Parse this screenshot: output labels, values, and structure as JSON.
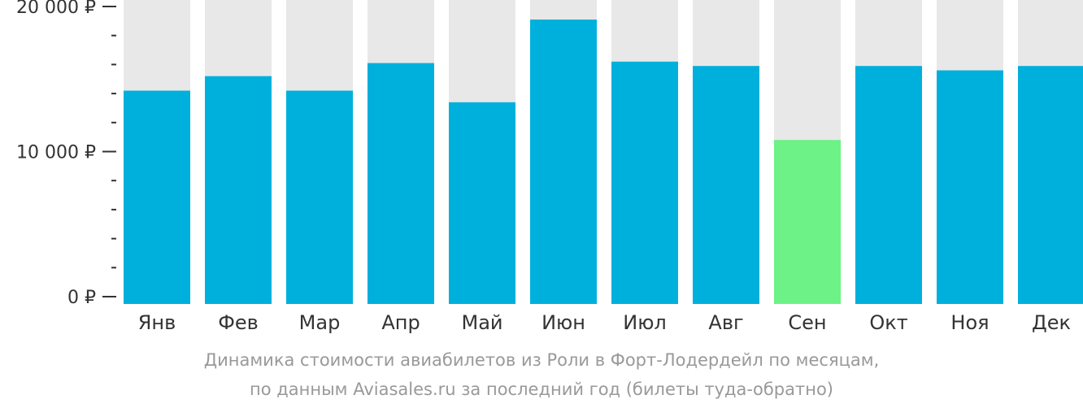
{
  "chart_data": {
    "type": "bar",
    "categories": [
      "Янв",
      "Фев",
      "Мар",
      "Апр",
      "Май",
      "Июн",
      "Июл",
      "Авг",
      "Сен",
      "Окт",
      "Ноя",
      "Дек"
    ],
    "values": [
      14200,
      15200,
      14200,
      16100,
      13400,
      19100,
      16200,
      15900,
      10800,
      15900,
      15600,
      15900
    ],
    "ylim": [
      0,
      20000
    ],
    "yticks": [
      {
        "value": 0,
        "label": "0 ₽"
      },
      {
        "value": 10000,
        "label": "10 000 ₽"
      },
      {
        "value": 20000,
        "label": "20 000 ₽"
      }
    ],
    "minor_tick_step": 2000,
    "highlight_index": 8,
    "colors": {
      "bar": "#00b0dc",
      "highlight": "#6cf286",
      "background_bar": "#e8e8e8",
      "axis": "#333333"
    },
    "grid": false,
    "legend": "none"
  },
  "caption": {
    "line1": "Динамика стоимости авиабилетов из Роли в Форт-Лодердейл по месяцам,",
    "line2": "по данным Aviasales.ru за последний год (билеты туда-обратно)"
  }
}
